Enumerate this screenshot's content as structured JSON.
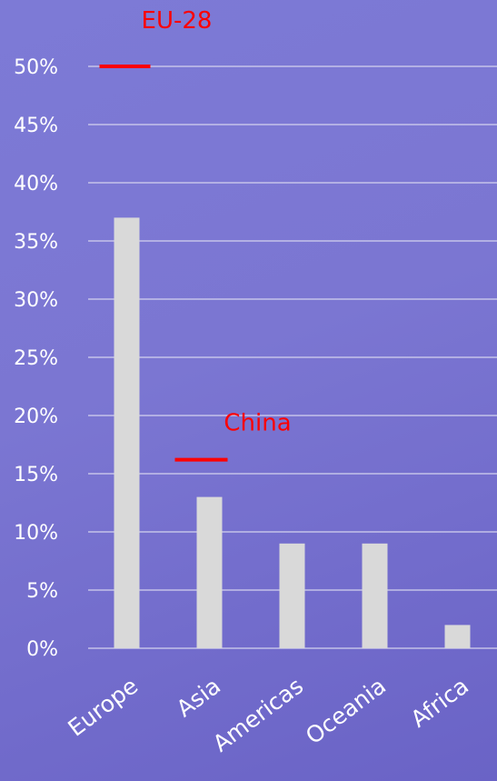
{
  "chart_data": {
    "type": "bar",
    "categories": [
      "Europe",
      "Asia",
      "Americas",
      "Oceania",
      "Africa"
    ],
    "values": [
      37,
      13,
      9,
      9,
      2
    ],
    "yticks": [
      "0%",
      "5%",
      "10%",
      "15%",
      "20%",
      "25%",
      "30%",
      "35%",
      "40%",
      "45%",
      "50%"
    ],
    "ylim": [
      0,
      50
    ],
    "grid": true,
    "annotations": [
      {
        "label": "EU-28",
        "value": 50,
        "category": "Europe"
      },
      {
        "label": "China",
        "value": 16.2,
        "category": "Asia"
      }
    ],
    "colors": {
      "bar": "#d9d9d9",
      "annotation": "#ff0000",
      "text": "#ffffff",
      "grid": "#d4d2ee"
    }
  }
}
